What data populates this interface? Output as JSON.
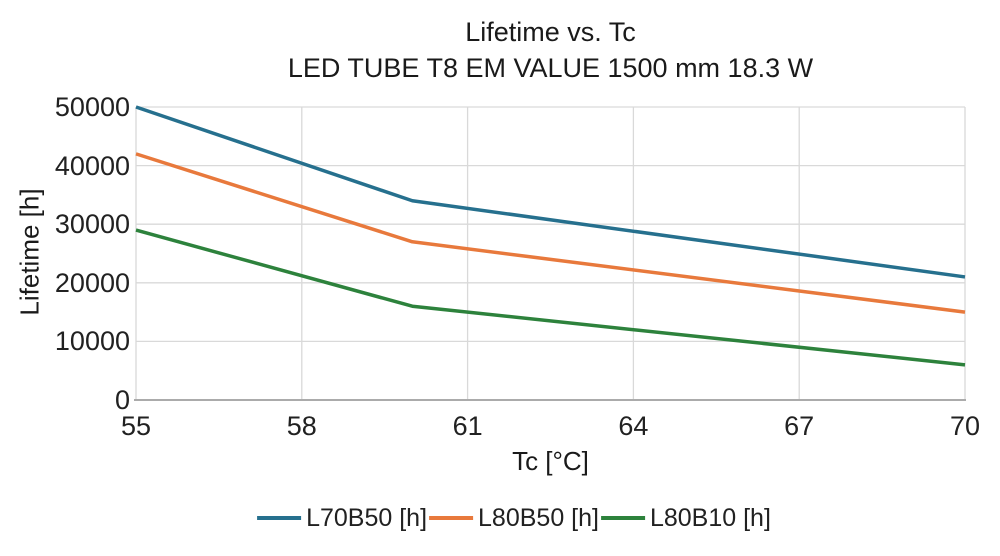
{
  "figure": {
    "title": "Lifetime vs. Tc",
    "subtitle": "LED TUBE T8 EM VALUE 1500 mm 18.3 W"
  },
  "chart_data": {
    "type": "line",
    "title": "Lifetime vs. Tc",
    "subtitle": "LED TUBE T8 EM VALUE 1500 mm 18.3 W",
    "xlabel": "Tc [°C]",
    "ylabel": "Lifetime [h]",
    "x": [
      55,
      60,
      70
    ],
    "series": [
      {
        "name": "L70B50 [h]",
        "color": "#26708E",
        "values": [
          50000,
          34000,
          21000
        ]
      },
      {
        "name": "L80B50 [h]",
        "color": "#E8793C",
        "values": [
          42000,
          27000,
          15000
        ]
      },
      {
        "name": "L80B10 [h]",
        "color": "#2D823C",
        "values": [
          29000,
          16000,
          6000
        ]
      }
    ],
    "xlim": [
      55,
      70
    ],
    "ylim": [
      0,
      50000
    ],
    "x_ticks": [
      55,
      58,
      61,
      64,
      67,
      70
    ],
    "y_ticks": [
      0,
      10000,
      20000,
      30000,
      40000,
      50000
    ],
    "grid": true,
    "legend_position": "bottom",
    "colors": {
      "gridline": "#D9D9D9",
      "axis_line": "#ABABAB",
      "text": "#212121"
    }
  }
}
